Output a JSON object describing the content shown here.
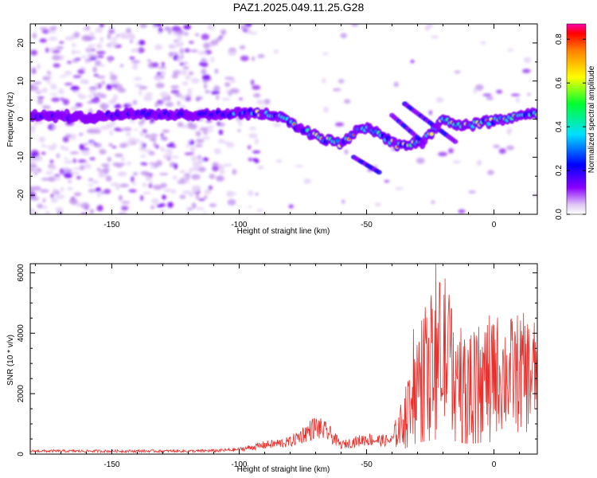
{
  "figure_title": "PAZ1.2025.049.11.25.G28",
  "colors": {
    "snr_line": "#e8302c",
    "colorscale": [
      "#ffffff",
      "#d8b8f0",
      "#8800ff",
      "#0000ff",
      "#00ddff",
      "#00ff44",
      "#ffee00",
      "#ff8800",
      "#ff0000",
      "#ff00aa"
    ]
  },
  "chart_data": [
    {
      "type": "heatmap",
      "xlabel": "Height of straight line (km)",
      "ylabel": "Frequency (Hz)",
      "xlim": [
        -182,
        17
      ],
      "ylim": [
        -25,
        25
      ],
      "xticks": [
        -150,
        -100,
        -50,
        0
      ],
      "yticks": [
        -20,
        -10,
        0,
        10,
        20
      ],
      "colorbar": {
        "label": "Normalized spectral amplitude",
        "range": [
          0.0,
          0.87
        ],
        "ticks": [
          0.0,
          0.2,
          0.4,
          0.6,
          0.8
        ]
      },
      "ridge": [
        {
          "x": -180,
          "y": 1
        },
        {
          "x": -160,
          "y": 0.5
        },
        {
          "x": -140,
          "y": 1.5
        },
        {
          "x": -120,
          "y": 1
        },
        {
          "x": -100,
          "y": 1.5
        },
        {
          "x": -90,
          "y": 1.5
        },
        {
          "x": -82,
          "y": 0
        },
        {
          "x": -75,
          "y": -3
        },
        {
          "x": -68,
          "y": -5
        },
        {
          "x": -60,
          "y": -6.5
        },
        {
          "x": -52,
          "y": -2
        },
        {
          "x": -45,
          "y": -4
        },
        {
          "x": -38,
          "y": -7
        },
        {
          "x": -28,
          "y": -6
        },
        {
          "x": -20,
          "y": 0
        },
        {
          "x": -12,
          "y": -2
        },
        {
          "x": -5,
          "y": -1
        },
        {
          "x": 5,
          "y": 0
        },
        {
          "x": 17,
          "y": 1.5
        }
      ]
    },
    {
      "type": "line",
      "xlabel": "Height of straight line (km)",
      "ylabel": "SNR (10 * v/v)",
      "xlim": [
        -182,
        17
      ],
      "ylim": [
        0,
        6300
      ],
      "xticks": [
        -150,
        -100,
        -50,
        0
      ],
      "yticks": [
        0,
        2000,
        4000,
        6000
      ],
      "envelope": [
        {
          "x": -182,
          "y": 100
        },
        {
          "x": -150,
          "y": 100
        },
        {
          "x": -120,
          "y": 100
        },
        {
          "x": -110,
          "y": 110
        },
        {
          "x": -100,
          "y": 150
        },
        {
          "x": -90,
          "y": 300
        },
        {
          "x": -80,
          "y": 400
        },
        {
          "x": -70,
          "y": 900
        },
        {
          "x": -65,
          "y": 700
        },
        {
          "x": -60,
          "y": 300
        },
        {
          "x": -55,
          "y": 400
        },
        {
          "x": -50,
          "y": 500
        },
        {
          "x": -45,
          "y": 450
        },
        {
          "x": -40,
          "y": 450
        },
        {
          "x": -35,
          "y": 1200
        },
        {
          "x": -30,
          "y": 2500
        },
        {
          "x": -25,
          "y": 3000
        },
        {
          "x": -20,
          "y": 3500
        },
        {
          "x": -15,
          "y": 2800
        },
        {
          "x": -10,
          "y": 2200
        },
        {
          "x": -5,
          "y": 2500
        },
        {
          "x": 0,
          "y": 2700
        },
        {
          "x": 5,
          "y": 2600
        },
        {
          "x": 10,
          "y": 2700
        },
        {
          "x": 17,
          "y": 2600
        }
      ]
    }
  ]
}
